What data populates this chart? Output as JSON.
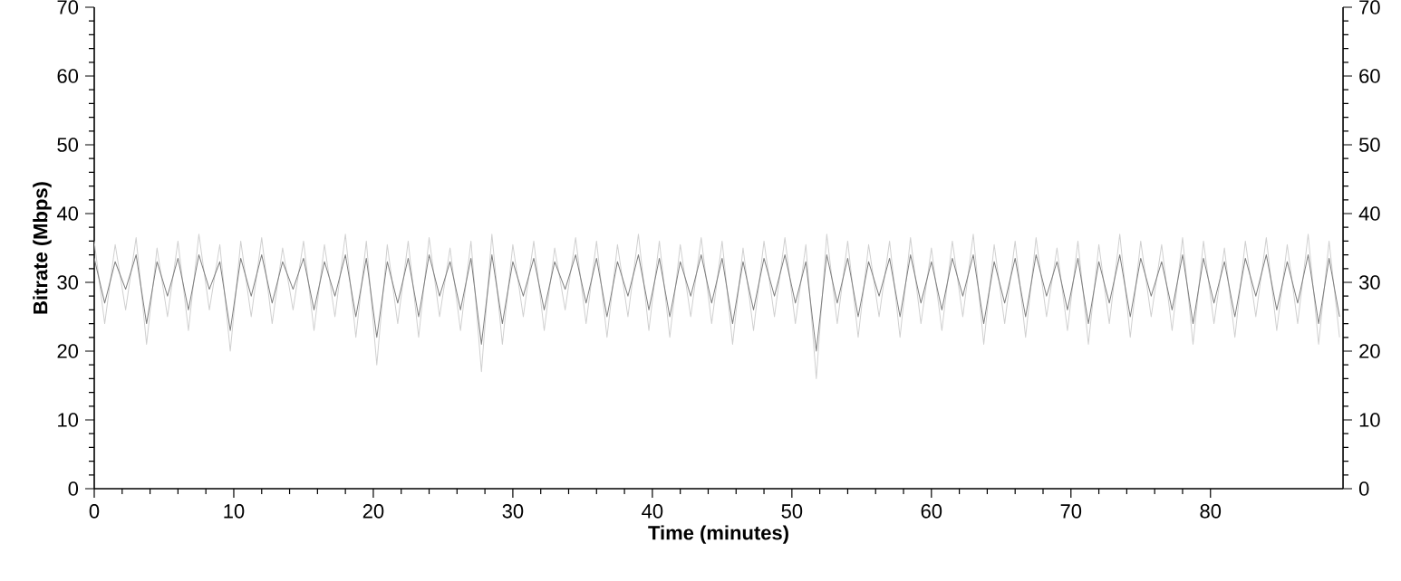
{
  "chart_data": {
    "type": "line",
    "xlabel": "Time (minutes)",
    "ylabel": "Bitrate (Mbps)",
    "xlim": [
      0,
      89.5
    ],
    "xticks": [
      0,
      10,
      20,
      30,
      40,
      50,
      60,
      70,
      80
    ],
    "ylim": [
      0,
      70
    ],
    "yticks": [
      0,
      10,
      20,
      30,
      40,
      50,
      60,
      70
    ],
    "y2lim": [
      0,
      70
    ],
    "y2ticks": [
      0,
      10,
      20,
      30,
      40,
      50,
      60,
      70
    ],
    "grid": false,
    "legend": false,
    "marker": "none",
    "line_style": "solid",
    "x": [
      0,
      0.75,
      1.5,
      2.25,
      3,
      3.75,
      4.5,
      5.25,
      6,
      6.75,
      7.5,
      8.25,
      9,
      9.75,
      10.5,
      11.25,
      12,
      12.75,
      13.5,
      14.25,
      15,
      15.75,
      16.5,
      17.25,
      18,
      18.75,
      19.5,
      20.25,
      21,
      21.75,
      22.5,
      23.25,
      24,
      24.75,
      25.5,
      26.25,
      27,
      27.75,
      28.5,
      29.25,
      30,
      30.75,
      31.5,
      32.25,
      33,
      33.75,
      34.5,
      35.25,
      36,
      36.75,
      37.5,
      38.25,
      39,
      39.75,
      40.5,
      41.25,
      42,
      42.75,
      43.5,
      44.25,
      45,
      45.75,
      46.5,
      47.25,
      48,
      48.75,
      49.5,
      50.25,
      51,
      51.75,
      52.5,
      53.25,
      54,
      54.75,
      55.5,
      56.25,
      57,
      57.75,
      58.5,
      59.25,
      60,
      60.75,
      61.5,
      62.25,
      63,
      63.75,
      64.5,
      65.25,
      66,
      66.75,
      67.5,
      68.25,
      69,
      69.75,
      70.5,
      71.25,
      72,
      72.75,
      73.5,
      74.25,
      75,
      75.75,
      76.5,
      77.25,
      78,
      78.75,
      79.5,
      80.25,
      81,
      81.75,
      82.5,
      83.25,
      84,
      84.75,
      85.5,
      86.25,
      87,
      87.75,
      88.5,
      89.25
    ],
    "series": [
      {
        "color": "#d0d0d0",
        "values": [
          36,
          24,
          35.5,
          26,
          36.5,
          21,
          35,
          25,
          36,
          23,
          37,
          26,
          35.5,
          20,
          36,
          25,
          36.5,
          24,
          35,
          26,
          36,
          23,
          35.5,
          25,
          37,
          22,
          36,
          18,
          35.5,
          24,
          36,
          22,
          36.5,
          25,
          35,
          23,
          36,
          17,
          37,
          21,
          35.5,
          25,
          36,
          23,
          35,
          26,
          36.5,
          24,
          36,
          22,
          35.5,
          25,
          37,
          23,
          36,
          22,
          35.5,
          25,
          36.5,
          24,
          36,
          21,
          35,
          23,
          36,
          25,
          36.5,
          24,
          35.5,
          16,
          37,
          24,
          36,
          22,
          35.5,
          25,
          36,
          22,
          36.5,
          24,
          35,
          23,
          36,
          25,
          37,
          21,
          35.5,
          24,
          36,
          22,
          36.5,
          25,
          35,
          23,
          36,
          21,
          35.5,
          24,
          37,
          22,
          36,
          25,
          35.5,
          23,
          36.5,
          21,
          36,
          24,
          35,
          22,
          36,
          25,
          36.5,
          23,
          35.5,
          24,
          37,
          21,
          36,
          22
        ]
      },
      {
        "color": "#7f7f7f",
        "values": [
          33.5,
          27,
          33,
          29,
          34,
          24,
          33,
          28,
          33.5,
          26,
          34,
          29,
          33,
          23,
          33.5,
          28,
          34,
          27,
          33,
          29,
          33.5,
          26,
          33,
          28,
          34,
          25,
          33.5,
          22,
          33,
          27,
          33.5,
          25,
          34,
          28,
          33,
          26,
          33.5,
          21,
          34,
          24,
          33,
          28,
          33.5,
          26,
          33,
          29,
          34,
          27,
          33.5,
          25,
          33,
          28,
          34,
          26,
          33.5,
          25,
          33,
          28,
          34,
          27,
          33.5,
          24,
          33,
          26,
          33.5,
          28,
          34,
          27,
          33,
          20,
          34,
          27,
          33.5,
          25,
          33,
          28,
          33.5,
          25,
          34,
          27,
          33,
          26,
          33.5,
          28,
          34,
          24,
          33,
          27,
          33.5,
          25,
          34,
          28,
          33,
          26,
          33.5,
          24,
          33,
          27,
          34,
          25,
          33.5,
          28,
          33,
          26,
          34,
          24,
          33.5,
          27,
          33,
          25,
          33.5,
          28,
          34,
          26,
          33,
          27,
          34,
          24,
          33.5,
          25
        ]
      }
    ]
  }
}
